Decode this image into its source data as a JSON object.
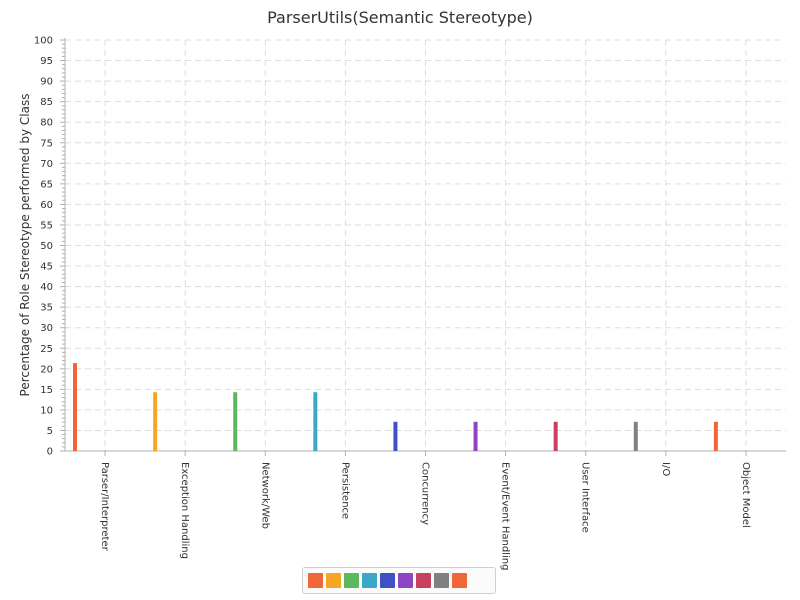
{
  "chart_data": {
    "type": "bar",
    "title": "ParserUtils(Semantic Stereotype)",
    "xlabel": "",
    "ylabel": "Percentage of Role Stereotype performed by Class",
    "ylim": [
      0,
      100
    ],
    "ytick_step": 5,
    "grid": true,
    "legend_position": "bottom-center",
    "categories": [
      "Parser/Interpreter",
      "Exception Handling",
      "Network/Web",
      "Persistence",
      "Concurrency",
      "Event/Event Handling",
      "User Interface",
      "I/O",
      "Object Model"
    ],
    "values": [
      21.4,
      14.3,
      14.3,
      14.3,
      7.1,
      7.1,
      7.1,
      7.1,
      7.1
    ],
    "colors": [
      "#f0653a",
      "#f5a623",
      "#5cb85c",
      "#3ba8c8",
      "#3f51c4",
      "#8e44c4",
      "#c8405e",
      "#808080",
      "#f0653a"
    ]
  }
}
